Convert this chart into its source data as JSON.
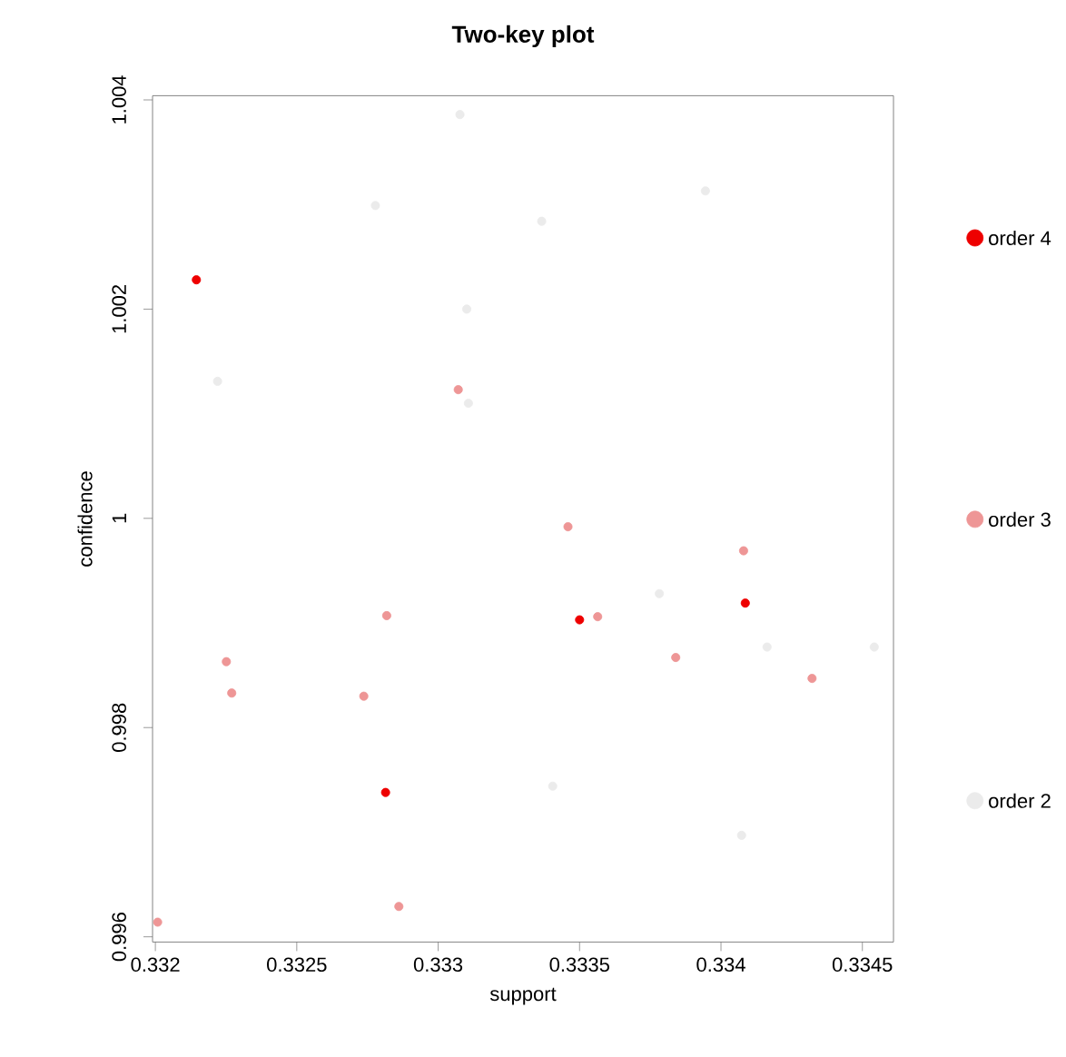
{
  "chart_data": {
    "type": "scatter",
    "title": "Two-key plot",
    "xlabel": "support",
    "ylabel": "confidence",
    "xlim": [
      0.33199,
      0.33461
    ],
    "ylim": [
      0.99595,
      1.00404
    ],
    "xticks": [
      0.332,
      0.3325,
      0.333,
      0.3335,
      0.334,
      0.3345
    ],
    "yticks": [
      0.996,
      0.998,
      1,
      1.002,
      1.004
    ],
    "marker": "circle",
    "legend": "right",
    "grid": false,
    "series": [
      {
        "name": "order 2",
        "color": "#ebebeb",
        "x": [
          0.333077,
          0.332778,
          0.333101,
          0.33222,
          0.333107,
          0.333945,
          0.333366,
          0.333782,
          0.334163,
          0.334542,
          0.333405,
          0.334073
        ],
        "values": [
          1.00386,
          1.00299,
          1.002,
          1.00131,
          1.0011,
          1.00313,
          1.00284,
          0.99928,
          0.99877,
          0.99877,
          0.99744,
          0.99697
        ]
      },
      {
        "name": "order 3",
        "color": "#ee9696",
        "x": [
          0.333071,
          0.332818,
          0.332251,
          0.33227,
          0.332737,
          0.332861,
          0.332008,
          0.333459,
          0.33408,
          0.333564,
          0.33384,
          0.334322
        ],
        "values": [
          1.00123,
          0.99907,
          0.99863,
          0.99833,
          0.9983,
          0.99629,
          0.99614,
          0.99992,
          0.99969,
          0.99906,
          0.99867,
          0.99847
        ]
      },
      {
        "name": "order 4",
        "color": "#ee0000",
        "x": [
          0.332145,
          0.332814,
          0.3335,
          0.334086
        ],
        "values": [
          1.00228,
          0.99738,
          0.99903,
          0.99919
        ]
      }
    ]
  }
}
